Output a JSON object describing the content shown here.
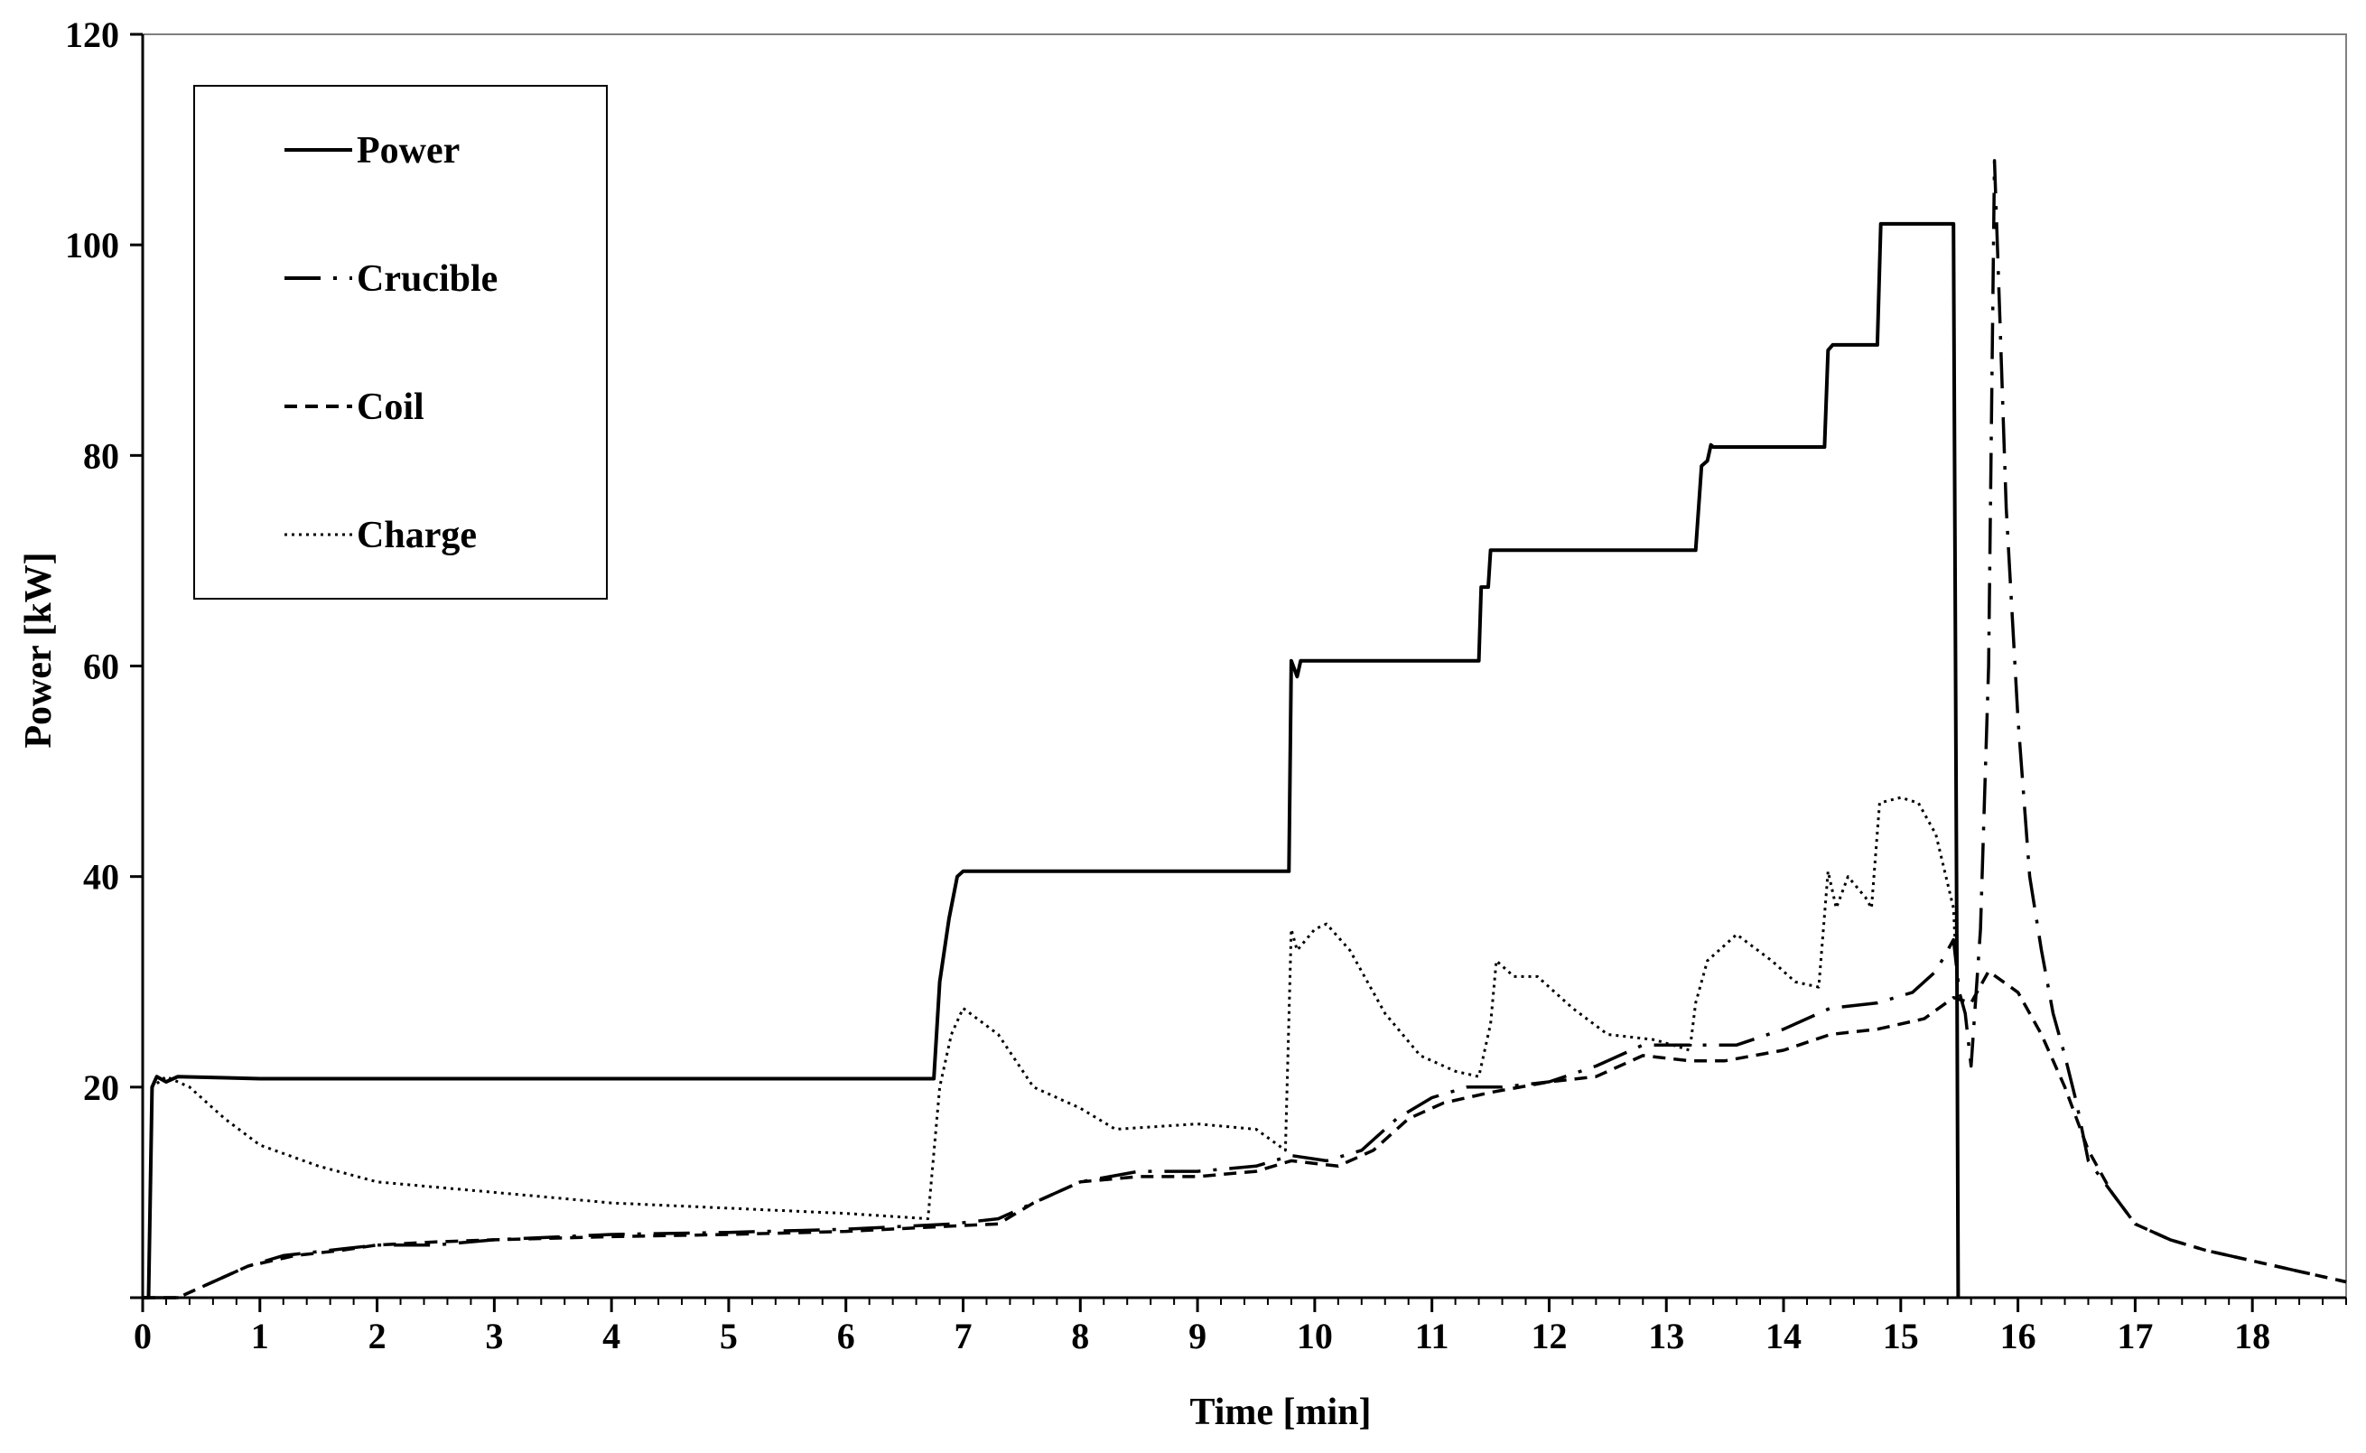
{
  "chart_data": {
    "type": "line",
    "title": "",
    "xlabel": "Time [min]",
    "ylabel": "Power [kW]",
    "xlim": [
      0,
      18.8
    ],
    "ylim": [
      0,
      120
    ],
    "xticks": [
      "0",
      "1",
      "2",
      "3",
      "4",
      "5",
      "6",
      "7",
      "8",
      "9",
      "10",
      "11",
      "12",
      "13",
      "14",
      "15",
      "16",
      "17",
      "18"
    ],
    "yticks": [
      "20",
      "40",
      "60",
      "80",
      "100",
      "120"
    ],
    "legend": {
      "position": "top-left"
    },
    "series": [
      {
        "name": "Power",
        "style": "solid",
        "points": [
          [
            0,
            0
          ],
          [
            0.05,
            0
          ],
          [
            0.08,
            20
          ],
          [
            0.12,
            21
          ],
          [
            0.2,
            20.5
          ],
          [
            0.3,
            21
          ],
          [
            1,
            20.8
          ],
          [
            6.75,
            20.8
          ],
          [
            6.8,
            30
          ],
          [
            6.88,
            36
          ],
          [
            6.95,
            40
          ],
          [
            7.0,
            40.5
          ],
          [
            9.78,
            40.5
          ],
          [
            9.8,
            60.5
          ],
          [
            9.85,
            59
          ],
          [
            9.88,
            60.5
          ],
          [
            11.4,
            60.5
          ],
          [
            11.42,
            67.5
          ],
          [
            11.48,
            67.5
          ],
          [
            11.5,
            71
          ],
          [
            13.25,
            71
          ],
          [
            13.3,
            79
          ],
          [
            13.35,
            79.5
          ],
          [
            13.38,
            81
          ],
          [
            13.4,
            80.8
          ],
          [
            14.35,
            80.8
          ],
          [
            14.38,
            90
          ],
          [
            14.42,
            90.5
          ],
          [
            14.8,
            90.5
          ],
          [
            14.83,
            102
          ],
          [
            15.45,
            102
          ],
          [
            15.48,
            30
          ],
          [
            15.49,
            0
          ]
        ]
      },
      {
        "name": "Crucible",
        "style": "dashdot",
        "points": [
          [
            0,
            0
          ],
          [
            0.3,
            0
          ],
          [
            0.6,
            1.5
          ],
          [
            0.9,
            3
          ],
          [
            1.2,
            4
          ],
          [
            1.6,
            4.5
          ],
          [
            2.0,
            5
          ],
          [
            2.5,
            5
          ],
          [
            3,
            5.5
          ],
          [
            4,
            6
          ],
          [
            5,
            6.2
          ],
          [
            6,
            6.5
          ],
          [
            6.9,
            7
          ],
          [
            7.3,
            7.5
          ],
          [
            7.6,
            9
          ],
          [
            8,
            11
          ],
          [
            8.5,
            12
          ],
          [
            9,
            12
          ],
          [
            9.5,
            12.5
          ],
          [
            9.8,
            13.5
          ],
          [
            10.1,
            13
          ],
          [
            10.4,
            14
          ],
          [
            10.7,
            17
          ],
          [
            11,
            19
          ],
          [
            11.3,
            20
          ],
          [
            11.6,
            20
          ],
          [
            12,
            20.5
          ],
          [
            12.4,
            22
          ],
          [
            12.8,
            24
          ],
          [
            13.2,
            24
          ],
          [
            13.6,
            24
          ],
          [
            14,
            25.5
          ],
          [
            14.4,
            27.5
          ],
          [
            14.8,
            28
          ],
          [
            15.1,
            29
          ],
          [
            15.3,
            31
          ],
          [
            15.45,
            34
          ],
          [
            15.5,
            29
          ],
          [
            15.55,
            27
          ],
          [
            15.6,
            22
          ],
          [
            15.68,
            35
          ],
          [
            15.75,
            60
          ],
          [
            15.8,
            108
          ],
          [
            15.84,
            95
          ],
          [
            15.9,
            75
          ],
          [
            16.0,
            55
          ],
          [
            16.1,
            40
          ],
          [
            16.2,
            33
          ],
          [
            16.3,
            27
          ],
          [
            16.4,
            23
          ],
          [
            16.5,
            18.5
          ],
          [
            16.6,
            13
          ],
          [
            16.8,
            10
          ],
          [
            17,
            7
          ],
          [
            17.3,
            5.5
          ],
          [
            17.6,
            4.5
          ],
          [
            18,
            3.5
          ],
          [
            18.4,
            2.5
          ],
          [
            18.8,
            1.5
          ]
        ]
      },
      {
        "name": "Coil",
        "style": "dashed",
        "points": [
          [
            0,
            0
          ],
          [
            0.3,
            0
          ],
          [
            0.6,
            1.5
          ],
          [
            0.9,
            3
          ],
          [
            1.3,
            4
          ],
          [
            1.7,
            4.5
          ],
          [
            2.0,
            5
          ],
          [
            2.5,
            5.3
          ],
          [
            3,
            5.5
          ],
          [
            4,
            5.8
          ],
          [
            5,
            6
          ],
          [
            6,
            6.3
          ],
          [
            6.9,
            6.8
          ],
          [
            7.3,
            7
          ],
          [
            7.6,
            9
          ],
          [
            8,
            11
          ],
          [
            8.5,
            11.5
          ],
          [
            9,
            11.5
          ],
          [
            9.5,
            12
          ],
          [
            9.8,
            13
          ],
          [
            10.2,
            12.5
          ],
          [
            10.5,
            14
          ],
          [
            10.8,
            17
          ],
          [
            11.1,
            18.5
          ],
          [
            11.5,
            19.5
          ],
          [
            12,
            20.5
          ],
          [
            12.4,
            21
          ],
          [
            12.8,
            23
          ],
          [
            13.2,
            22.5
          ],
          [
            13.5,
            22.5
          ],
          [
            14,
            23.5
          ],
          [
            14.4,
            25
          ],
          [
            14.8,
            25.5
          ],
          [
            15.2,
            26.5
          ],
          [
            15.45,
            28.5
          ],
          [
            15.6,
            28
          ],
          [
            15.75,
            31
          ],
          [
            16.0,
            29
          ],
          [
            16.2,
            25
          ],
          [
            16.4,
            20
          ],
          [
            16.6,
            14
          ],
          [
            16.8,
            10
          ],
          [
            17,
            7
          ],
          [
            17.3,
            5.5
          ],
          [
            17.6,
            4.5
          ],
          [
            18,
            3.5
          ],
          [
            18.4,
            2.5
          ],
          [
            18.8,
            1.5
          ]
        ]
      },
      {
        "name": "Charge",
        "style": "dotted",
        "points": [
          [
            0.05,
            0
          ],
          [
            0.08,
            20
          ],
          [
            0.2,
            21
          ],
          [
            0.4,
            20
          ],
          [
            0.7,
            17
          ],
          [
            1.0,
            14.5
          ],
          [
            1.5,
            12.5
          ],
          [
            2,
            11
          ],
          [
            2.5,
            10.5
          ],
          [
            3,
            10
          ],
          [
            3.5,
            9.5
          ],
          [
            4,
            9
          ],
          [
            5,
            8.5
          ],
          [
            6,
            8
          ],
          [
            6.7,
            7.5
          ],
          [
            6.8,
            20
          ],
          [
            6.9,
            25
          ],
          [
            7.0,
            27.5
          ],
          [
            7.3,
            25
          ],
          [
            7.6,
            20
          ],
          [
            8,
            18
          ],
          [
            8.3,
            16
          ],
          [
            9,
            16.5
          ],
          [
            9.5,
            16
          ],
          [
            9.75,
            14
          ],
          [
            9.8,
            35
          ],
          [
            9.85,
            33
          ],
          [
            10.0,
            35
          ],
          [
            10.1,
            35.5
          ],
          [
            10.3,
            33
          ],
          [
            10.6,
            27
          ],
          [
            10.9,
            23
          ],
          [
            11.2,
            21.5
          ],
          [
            11.4,
            21
          ],
          [
            11.5,
            26
          ],
          [
            11.55,
            32
          ],
          [
            11.7,
            30.5
          ],
          [
            11.9,
            30.5
          ],
          [
            12.2,
            27.5
          ],
          [
            12.5,
            25
          ],
          [
            12.9,
            24.5
          ],
          [
            13.2,
            23.5
          ],
          [
            13.25,
            28
          ],
          [
            13.35,
            32
          ],
          [
            13.6,
            34.5
          ],
          [
            13.9,
            32
          ],
          [
            14.1,
            30
          ],
          [
            14.3,
            29.5
          ],
          [
            14.38,
            40.5
          ],
          [
            14.45,
            37
          ],
          [
            14.55,
            40
          ],
          [
            14.7,
            38
          ],
          [
            14.75,
            37
          ],
          [
            14.82,
            47
          ],
          [
            15.0,
            47.5
          ],
          [
            15.15,
            47
          ],
          [
            15.3,
            44
          ],
          [
            15.45,
            37
          ],
          [
            15.48,
            30
          ],
          [
            15.49,
            0
          ]
        ]
      }
    ]
  }
}
